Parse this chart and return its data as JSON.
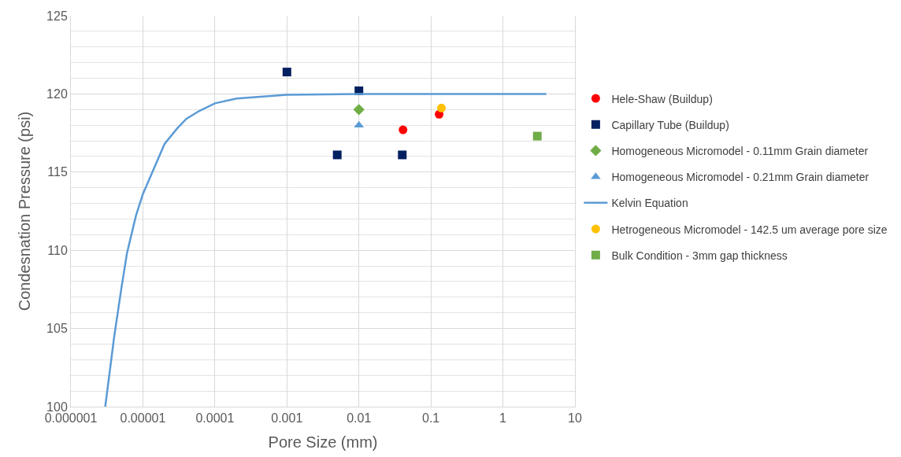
{
  "chart_data": {
    "type": "scatter",
    "xlabel": "Pore Size (mm)",
    "ylabel": "Condesnation Pressure (psi)",
    "log": "x",
    "grid": true,
    "legend": "right",
    "xlim": [
      1e-06,
      10
    ],
    "xticks": [
      {
        "value": 1e-06,
        "label": "0.000001"
      },
      {
        "value": 1e-05,
        "label": "0.00001"
      },
      {
        "value": 0.0001,
        "label": "0.0001"
      },
      {
        "value": 0.001,
        "label": "0.001"
      },
      {
        "value": 0.01,
        "label": "0.01"
      },
      {
        "value": 0.1,
        "label": "0.1"
      },
      {
        "value": 1,
        "label": "1"
      },
      {
        "value": 10,
        "label": "10"
      }
    ],
    "ylim": [
      100,
      125
    ],
    "yticks": [
      100,
      105,
      110,
      115,
      120,
      125
    ],
    "series": [
      {
        "name": "Hele-Shaw (Buildup)",
        "color": "#ff0000",
        "marker": "circle",
        "x": [
          0.041,
          0.13
        ],
        "values": [
          117.7,
          118.7
        ]
      },
      {
        "name": "Capillary Tube (Buildup)",
        "color": "#002060",
        "marker": "square",
        "x": [
          0.001,
          0.01,
          0.005,
          0.04
        ],
        "values": [
          121.4,
          120.2,
          116.1,
          116.1
        ]
      },
      {
        "name": "Homogeneous Micromodel - 0.11mm Grain diameter",
        "color": "#70ad47",
        "marker": "diamond",
        "x": [
          0.01
        ],
        "values": [
          119.0
        ]
      },
      {
        "name": "Homogeneous Micromodel - 0.21mm Grain diameter",
        "color": "#5b9bd5",
        "marker": "triangle",
        "x": [
          0.01
        ],
        "values": [
          118.0
        ]
      },
      {
        "name": "Kelvin Equation",
        "type": "line",
        "color": "#5b9bd5",
        "marker": "none",
        "line_style": "solid",
        "x": [
          3e-06,
          4e-06,
          5e-06,
          6e-06,
          8e-06,
          1e-05,
          2e-05,
          3e-05,
          4e-05,
          6e-05,
          0.0001,
          0.0002,
          0.001,
          0.01,
          0.1,
          4
        ],
        "values": [
          100,
          104.5,
          107.5,
          109.8,
          112.2,
          113.6,
          116.8,
          117.8,
          118.4,
          118.9,
          119.4,
          119.7,
          119.95,
          120,
          120,
          120
        ]
      },
      {
        "name": "Hetrogeneous Micromodel - 142.5 um average pore size",
        "color": "#ffc000",
        "marker": "circle",
        "x": [
          0.14
        ],
        "values": [
          119.1
        ]
      },
      {
        "name": "Bulk Condition - 3mm gap thickness",
        "color": "#70ad47",
        "marker": "square",
        "x": [
          3
        ],
        "values": [
          117.3
        ]
      }
    ]
  }
}
